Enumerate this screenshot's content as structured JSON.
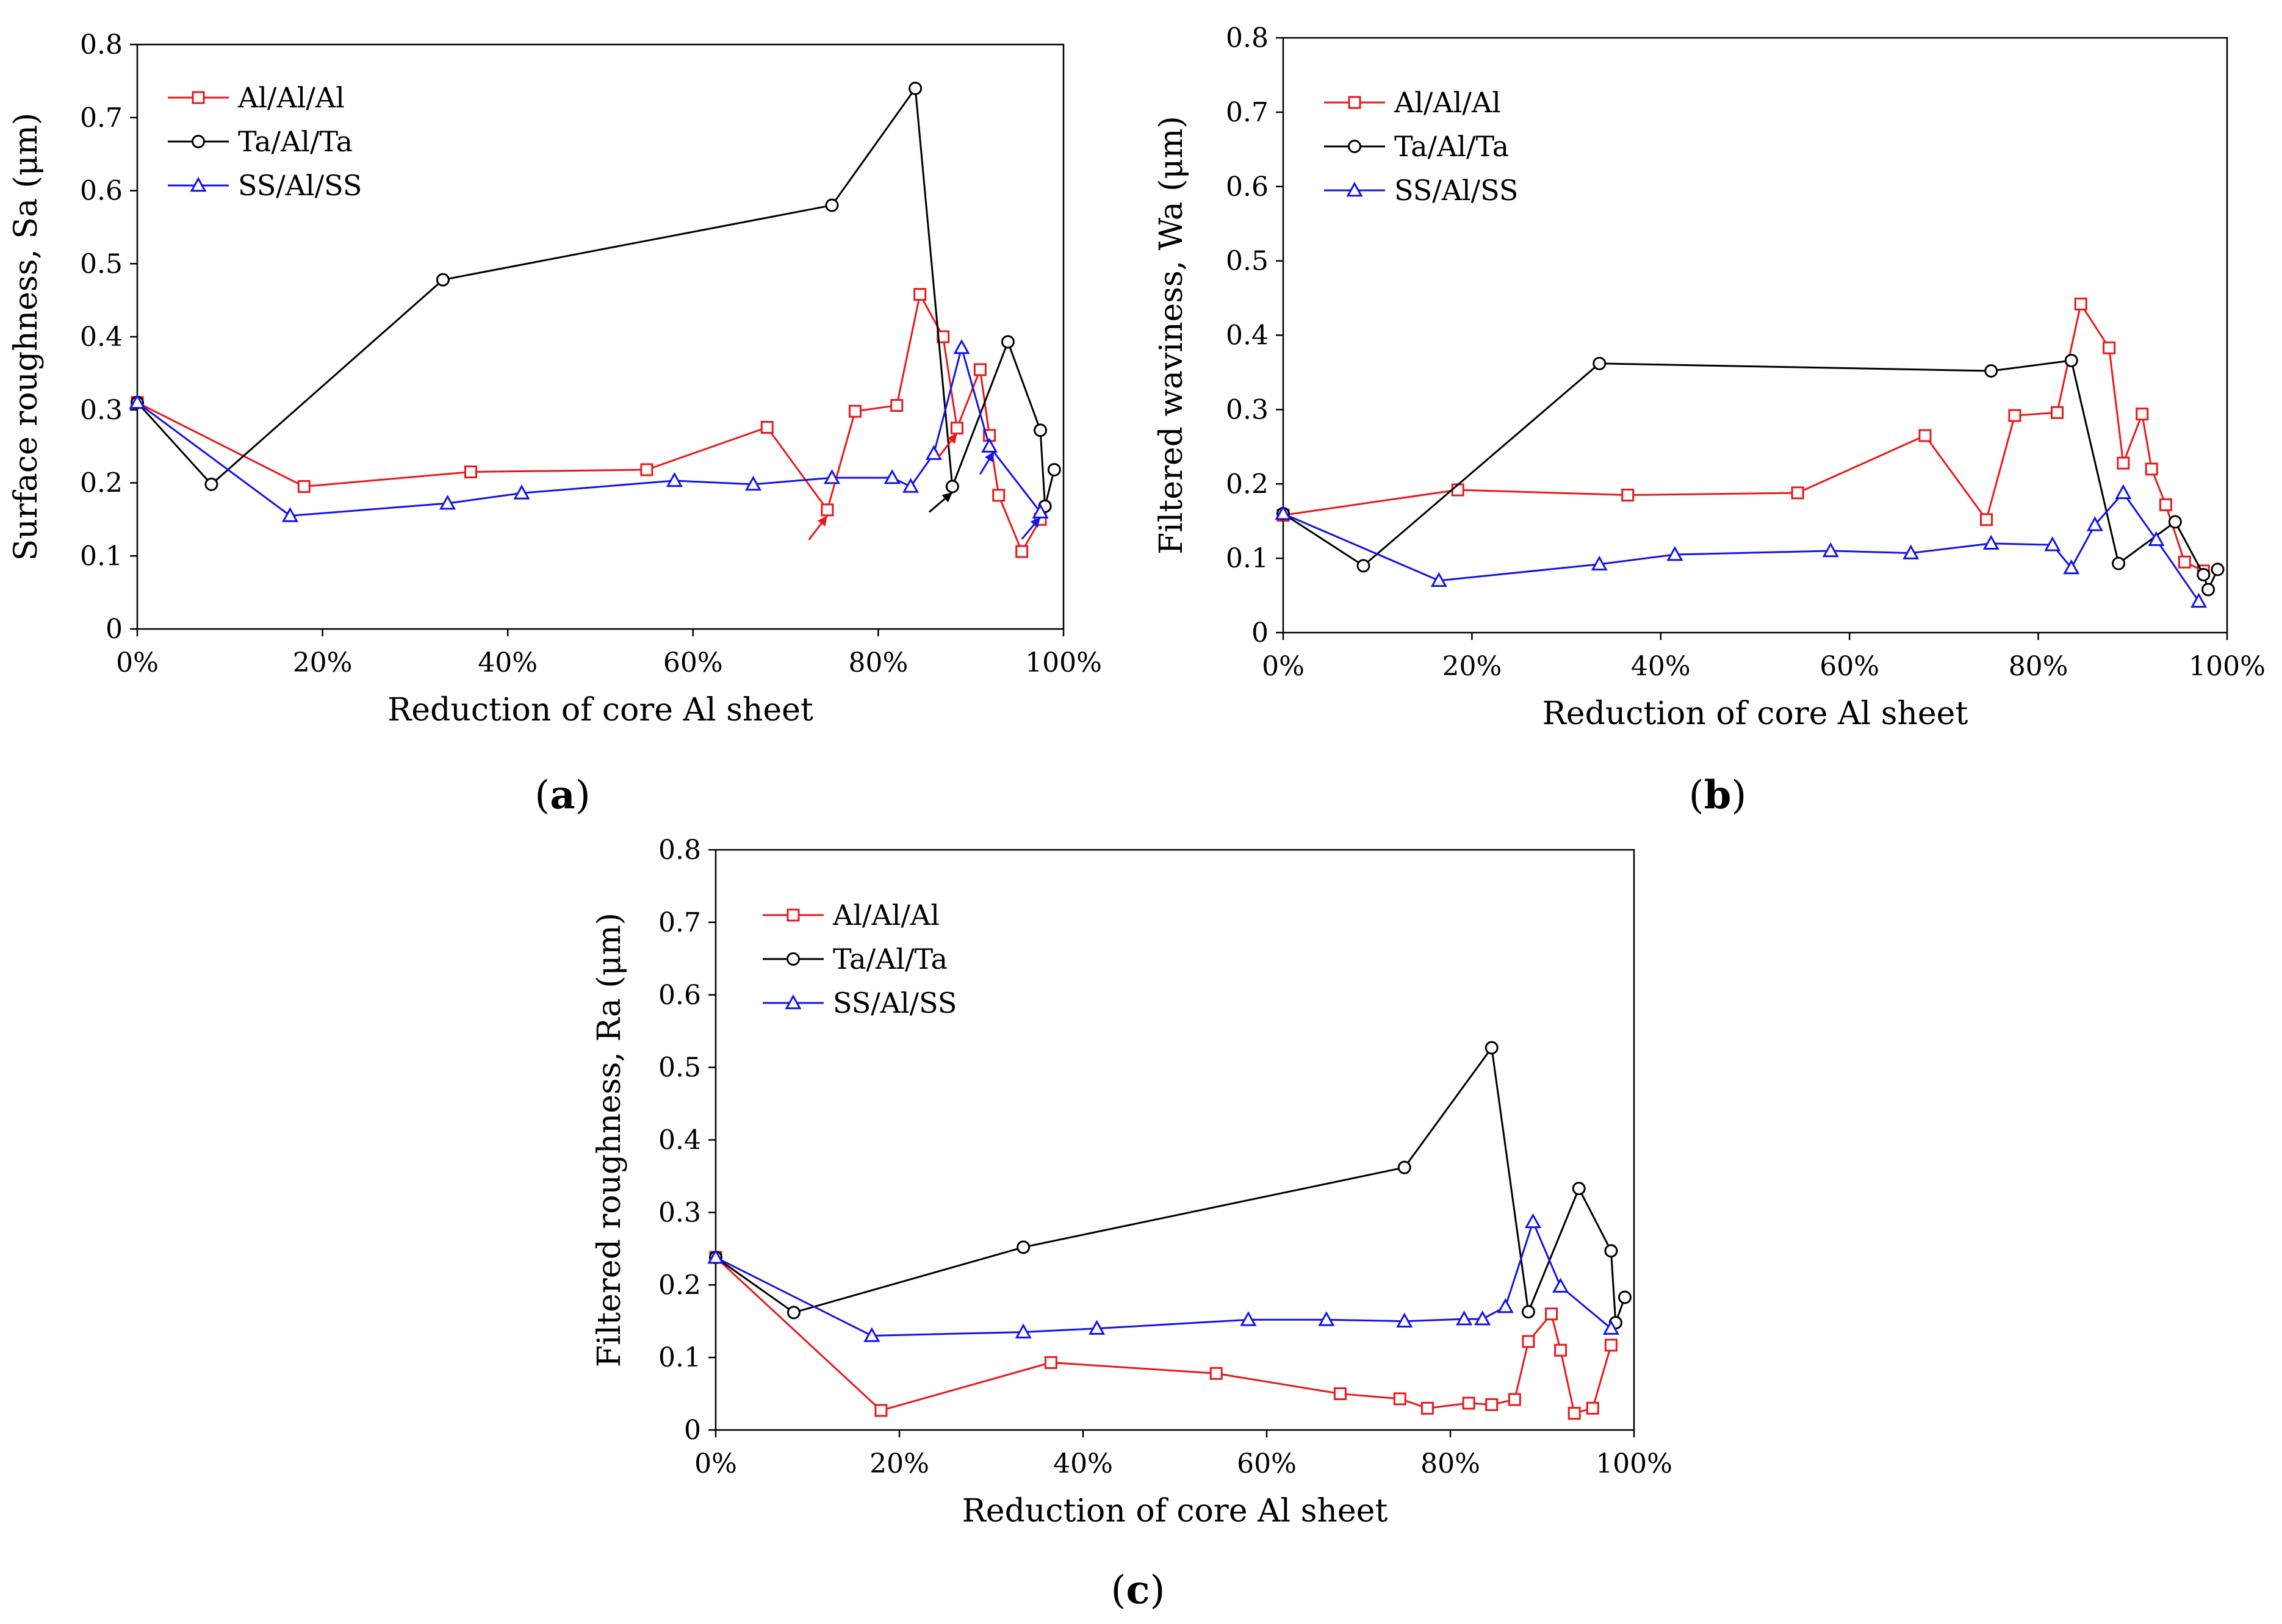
{
  "figure": {
    "panels": [
      "(a)",
      "(b)",
      "(c)"
    ]
  },
  "chart_data": [
    {
      "type": "line",
      "panel_label": "(a)",
      "panel_letter": "a",
      "xlabel": "Reduction of core Al sheet",
      "ylabel": "Surface roughness, Sa (μm)",
      "xlim": [
        0,
        100
      ],
      "ylim": [
        0,
        0.8
      ],
      "xticks": [
        0,
        20,
        40,
        60,
        80,
        100
      ],
      "xtick_labels": [
        "0%",
        "20%",
        "40%",
        "60%",
        "80%",
        "100%"
      ],
      "yticks": [
        0,
        0.1,
        0.2,
        0.3,
        0.4,
        0.5,
        0.6,
        0.7,
        0.8
      ],
      "ytick_labels": [
        "0",
        "0.1",
        "0.2",
        "0.3",
        "0.4",
        "0.5",
        "0.6",
        "0.7",
        "0.8"
      ],
      "legend": "top-left",
      "series": [
        {
          "name": "Al/Al/Al",
          "color": "#e8191c",
          "marker": "square",
          "x": [
            0,
            18,
            36,
            55,
            68,
            74.5,
            77.5,
            82,
            84.5,
            87,
            88.5,
            91,
            92,
            93,
            95.5,
            97.5
          ],
          "y": [
            0.31,
            0.195,
            0.215,
            0.218,
            0.276,
            0.163,
            0.298,
            0.306,
            0.458,
            0.4,
            0.275,
            0.355,
            0.265,
            0.183,
            0.106,
            0.15
          ]
        },
        {
          "name": "Ta/Al/Ta",
          "color": "#000000",
          "marker": "circle",
          "x": [
            0,
            8,
            33,
            75,
            84,
            88,
            94,
            97.5,
            98,
            99
          ],
          "y": [
            0.31,
            0.198,
            0.478,
            0.58,
            0.74,
            0.195,
            0.393,
            0.272,
            0.168,
            0.218
          ]
        },
        {
          "name": "SS/Al/SS",
          "color": "#1414e6",
          "marker": "triangle",
          "x": [
            0,
            16.5,
            33.5,
            41.5,
            58,
            66.5,
            75,
            81.5,
            83.5,
            86,
            89,
            92,
            97.5
          ],
          "y": [
            0.31,
            0.155,
            0.172,
            0.186,
            0.203,
            0.198,
            0.207,
            0.207,
            0.195,
            0.24,
            0.385,
            0.25,
            0.16
          ]
        }
      ],
      "annotations": [
        {
          "type": "arrow",
          "color": "#e8191c",
          "from": [
            72.5,
            0.122
          ],
          "to": [
            74.5,
            0.155
          ]
        },
        {
          "type": "arrow",
          "color": "#e8191c",
          "from": [
            86.5,
            0.235
          ],
          "to": [
            88.5,
            0.268
          ]
        },
        {
          "type": "arrow",
          "color": "#000000",
          "from": [
            85.5,
            0.16
          ],
          "to": [
            88,
            0.187
          ]
        },
        {
          "type": "arrow",
          "color": "#1414e6",
          "from": [
            91,
            0.212
          ],
          "to": [
            92.5,
            0.243
          ]
        },
        {
          "type": "arrow",
          "color": "#1414e6",
          "from": [
            95.5,
            0.123
          ],
          "to": [
            97.5,
            0.153
          ]
        }
      ]
    },
    {
      "type": "line",
      "panel_label": "(b)",
      "panel_letter": "b",
      "xlabel": "Reduction of core Al sheet",
      "ylabel": "Filtered waviness, Wa (μm)",
      "xlim": [
        0,
        100
      ],
      "ylim": [
        0,
        0.8
      ],
      "xticks": [
        0,
        20,
        40,
        60,
        80,
        100
      ],
      "xtick_labels": [
        "0%",
        "20%",
        "40%",
        "60%",
        "80%",
        "100%"
      ],
      "yticks": [
        0,
        0.1,
        0.2,
        0.3,
        0.4,
        0.5,
        0.6,
        0.7,
        0.8
      ],
      "ytick_labels": [
        "0",
        "0.1",
        "0.2",
        "0.3",
        "0.4",
        "0.5",
        "0.6",
        "0.7",
        "0.8"
      ],
      "legend": "top-left",
      "series": [
        {
          "name": "Al/Al/Al",
          "color": "#e8191c",
          "marker": "square",
          "x": [
            0,
            18.5,
            36.5,
            54.5,
            68,
            74.5,
            77.5,
            82,
            84.5,
            87.5,
            89,
            91,
            92,
            93.5,
            95.5,
            97.5
          ],
          "y": [
            0.158,
            0.192,
            0.185,
            0.188,
            0.265,
            0.152,
            0.292,
            0.296,
            0.442,
            0.383,
            0.228,
            0.294,
            0.22,
            0.172,
            0.095,
            0.083
          ]
        },
        {
          "name": "Ta/Al/Ta",
          "color": "#000000",
          "marker": "circle",
          "x": [
            0,
            8.5,
            33.5,
            75,
            83.5,
            88.5,
            94.5,
            97.5,
            98,
            99
          ],
          "y": [
            0.16,
            0.09,
            0.362,
            0.352,
            0.366,
            0.093,
            0.149,
            0.078,
            0.058,
            0.085
          ]
        },
        {
          "name": "SS/Al/SS",
          "color": "#1414e6",
          "marker": "triangle",
          "x": [
            0,
            16.5,
            33.5,
            41.5,
            58,
            66.5,
            75,
            81.5,
            83.5,
            86,
            89,
            92.5,
            97
          ],
          "y": [
            0.16,
            0.07,
            0.092,
            0.105,
            0.11,
            0.107,
            0.12,
            0.118,
            0.087,
            0.145,
            0.188,
            0.125,
            0.042
          ]
        }
      ]
    },
    {
      "type": "line",
      "panel_label": "(c)",
      "panel_letter": "c",
      "xlabel": "Reduction of core Al sheet",
      "ylabel": "Filtered roughness, Ra (μm)",
      "xlim": [
        0,
        100
      ],
      "ylim": [
        0,
        0.8
      ],
      "xticks": [
        0,
        20,
        40,
        60,
        80,
        100
      ],
      "xtick_labels": [
        "0%",
        "20%",
        "40%",
        "60%",
        "80%",
        "100%"
      ],
      "yticks": [
        0,
        0.1,
        0.2,
        0.3,
        0.4,
        0.5,
        0.6,
        0.7,
        0.8
      ],
      "ytick_labels": [
        "0",
        "0.1",
        "0.2",
        "0.3",
        "0.4",
        "0.5",
        "0.6",
        "0.7",
        "0.8"
      ],
      "legend": "top-left",
      "series": [
        {
          "name": "Al/Al/Al",
          "color": "#e8191c",
          "marker": "square",
          "x": [
            0,
            18,
            36.5,
            54.5,
            68,
            74.5,
            77.5,
            82,
            84.5,
            87,
            88.5,
            91,
            92,
            93.5,
            95.5,
            97.5
          ],
          "y": [
            0.238,
            0.027,
            0.093,
            0.078,
            0.05,
            0.043,
            0.03,
            0.037,
            0.035,
            0.042,
            0.122,
            0.16,
            0.11,
            0.023,
            0.03,
            0.117
          ]
        },
        {
          "name": "Ta/Al/Ta",
          "color": "#000000",
          "marker": "circle",
          "x": [
            0,
            8.5,
            33.5,
            75,
            84.5,
            88.5,
            94,
            97.5,
            98,
            99
          ],
          "y": [
            0.238,
            0.162,
            0.252,
            0.362,
            0.527,
            0.163,
            0.333,
            0.247,
            0.148,
            0.183
          ]
        },
        {
          "name": "SS/Al/SS",
          "color": "#1414e6",
          "marker": "triangle",
          "x": [
            0,
            17,
            33.5,
            41.5,
            58,
            66.5,
            75,
            81.5,
            83.5,
            86,
            89,
            92,
            97.5
          ],
          "y": [
            0.238,
            0.13,
            0.135,
            0.14,
            0.152,
            0.152,
            0.15,
            0.153,
            0.153,
            0.17,
            0.287,
            0.198,
            0.14
          ]
        }
      ]
    }
  ]
}
